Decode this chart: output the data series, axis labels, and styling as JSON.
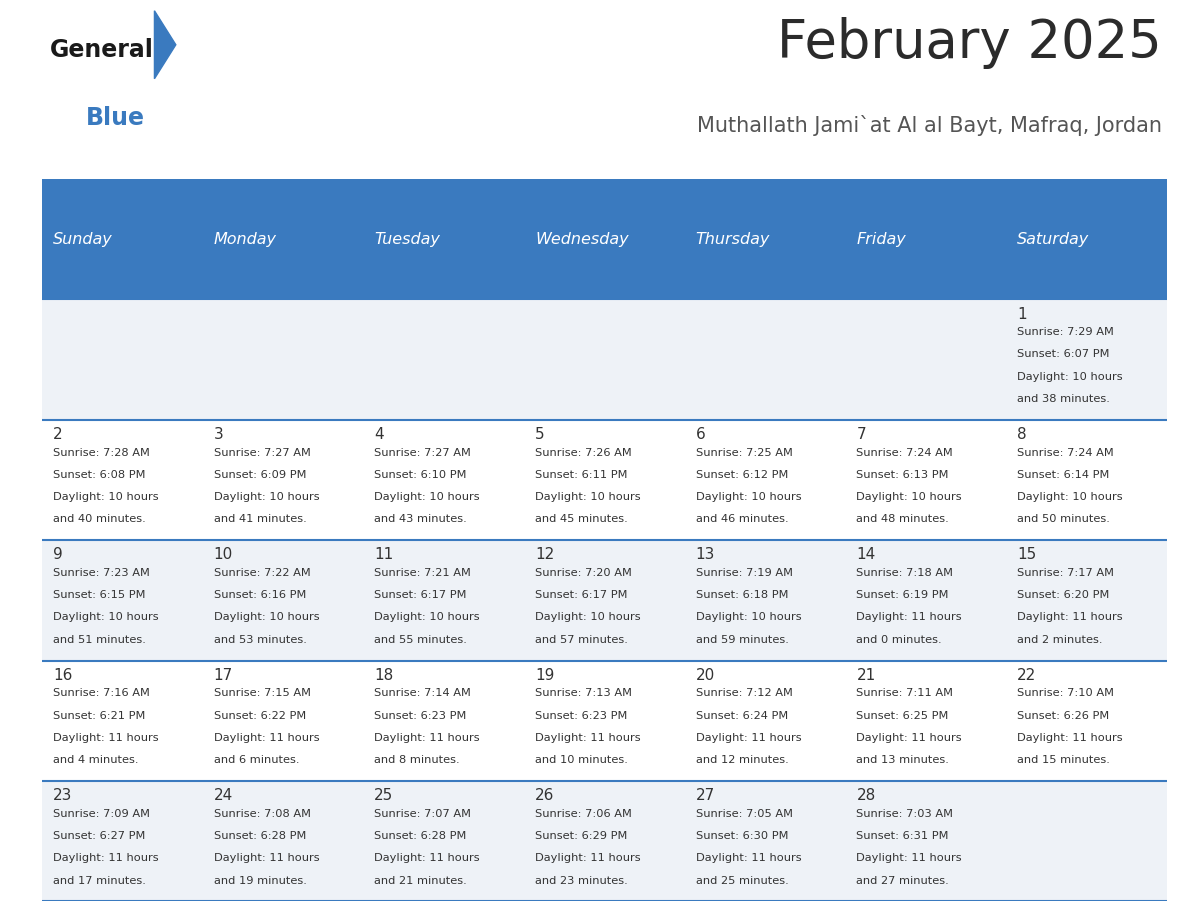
{
  "title": "February 2025",
  "subtitle": "Muthallath Jami`at Al al Bayt, Mafraq, Jordan",
  "header_bg": "#3a7abf",
  "header_text": "#ffffff",
  "row_bg_1": "#eef2f7",
  "row_bg_2": "#ffffff",
  "separator_color": "#3a7abf",
  "text_color": "#333333",
  "logo_general_color": "#1a1a1a",
  "logo_blue_color": "#3a7abf",
  "days_of_week": [
    "Sunday",
    "Monday",
    "Tuesday",
    "Wednesday",
    "Thursday",
    "Friday",
    "Saturday"
  ],
  "calendar_data": [
    [
      null,
      null,
      null,
      null,
      null,
      null,
      {
        "day": "1",
        "sunrise": "7:29 AM",
        "sunset": "6:07 PM",
        "daylight_line1": "Daylight: 10 hours",
        "daylight_line2": "and 38 minutes."
      }
    ],
    [
      {
        "day": "2",
        "sunrise": "7:28 AM",
        "sunset": "6:08 PM",
        "daylight_line1": "Daylight: 10 hours",
        "daylight_line2": "and 40 minutes."
      },
      {
        "day": "3",
        "sunrise": "7:27 AM",
        "sunset": "6:09 PM",
        "daylight_line1": "Daylight: 10 hours",
        "daylight_line2": "and 41 minutes."
      },
      {
        "day": "4",
        "sunrise": "7:27 AM",
        "sunset": "6:10 PM",
        "daylight_line1": "Daylight: 10 hours",
        "daylight_line2": "and 43 minutes."
      },
      {
        "day": "5",
        "sunrise": "7:26 AM",
        "sunset": "6:11 PM",
        "daylight_line1": "Daylight: 10 hours",
        "daylight_line2": "and 45 minutes."
      },
      {
        "day": "6",
        "sunrise": "7:25 AM",
        "sunset": "6:12 PM",
        "daylight_line1": "Daylight: 10 hours",
        "daylight_line2": "and 46 minutes."
      },
      {
        "day": "7",
        "sunrise": "7:24 AM",
        "sunset": "6:13 PM",
        "daylight_line1": "Daylight: 10 hours",
        "daylight_line2": "and 48 minutes."
      },
      {
        "day": "8",
        "sunrise": "7:24 AM",
        "sunset": "6:14 PM",
        "daylight_line1": "Daylight: 10 hours",
        "daylight_line2": "and 50 minutes."
      }
    ],
    [
      {
        "day": "9",
        "sunrise": "7:23 AM",
        "sunset": "6:15 PM",
        "daylight_line1": "Daylight: 10 hours",
        "daylight_line2": "and 51 minutes."
      },
      {
        "day": "10",
        "sunrise": "7:22 AM",
        "sunset": "6:16 PM",
        "daylight_line1": "Daylight: 10 hours",
        "daylight_line2": "and 53 minutes."
      },
      {
        "day": "11",
        "sunrise": "7:21 AM",
        "sunset": "6:17 PM",
        "daylight_line1": "Daylight: 10 hours",
        "daylight_line2": "and 55 minutes."
      },
      {
        "day": "12",
        "sunrise": "7:20 AM",
        "sunset": "6:17 PM",
        "daylight_line1": "Daylight: 10 hours",
        "daylight_line2": "and 57 minutes."
      },
      {
        "day": "13",
        "sunrise": "7:19 AM",
        "sunset": "6:18 PM",
        "daylight_line1": "Daylight: 10 hours",
        "daylight_line2": "and 59 minutes."
      },
      {
        "day": "14",
        "sunrise": "7:18 AM",
        "sunset": "6:19 PM",
        "daylight_line1": "Daylight: 11 hours",
        "daylight_line2": "and 0 minutes."
      },
      {
        "day": "15",
        "sunrise": "7:17 AM",
        "sunset": "6:20 PM",
        "daylight_line1": "Daylight: 11 hours",
        "daylight_line2": "and 2 minutes."
      }
    ],
    [
      {
        "day": "16",
        "sunrise": "7:16 AM",
        "sunset": "6:21 PM",
        "daylight_line1": "Daylight: 11 hours",
        "daylight_line2": "and 4 minutes."
      },
      {
        "day": "17",
        "sunrise": "7:15 AM",
        "sunset": "6:22 PM",
        "daylight_line1": "Daylight: 11 hours",
        "daylight_line2": "and 6 minutes."
      },
      {
        "day": "18",
        "sunrise": "7:14 AM",
        "sunset": "6:23 PM",
        "daylight_line1": "Daylight: 11 hours",
        "daylight_line2": "and 8 minutes."
      },
      {
        "day": "19",
        "sunrise": "7:13 AM",
        "sunset": "6:23 PM",
        "daylight_line1": "Daylight: 11 hours",
        "daylight_line2": "and 10 minutes."
      },
      {
        "day": "20",
        "sunrise": "7:12 AM",
        "sunset": "6:24 PM",
        "daylight_line1": "Daylight: 11 hours",
        "daylight_line2": "and 12 minutes."
      },
      {
        "day": "21",
        "sunrise": "7:11 AM",
        "sunset": "6:25 PM",
        "daylight_line1": "Daylight: 11 hours",
        "daylight_line2": "and 13 minutes."
      },
      {
        "day": "22",
        "sunrise": "7:10 AM",
        "sunset": "6:26 PM",
        "daylight_line1": "Daylight: 11 hours",
        "daylight_line2": "and 15 minutes."
      }
    ],
    [
      {
        "day": "23",
        "sunrise": "7:09 AM",
        "sunset": "6:27 PM",
        "daylight_line1": "Daylight: 11 hours",
        "daylight_line2": "and 17 minutes."
      },
      {
        "day": "24",
        "sunrise": "7:08 AM",
        "sunset": "6:28 PM",
        "daylight_line1": "Daylight: 11 hours",
        "daylight_line2": "and 19 minutes."
      },
      {
        "day": "25",
        "sunrise": "7:07 AM",
        "sunset": "6:28 PM",
        "daylight_line1": "Daylight: 11 hours",
        "daylight_line2": "and 21 minutes."
      },
      {
        "day": "26",
        "sunrise": "7:06 AM",
        "sunset": "6:29 PM",
        "daylight_line1": "Daylight: 11 hours",
        "daylight_line2": "and 23 minutes."
      },
      {
        "day": "27",
        "sunrise": "7:05 AM",
        "sunset": "6:30 PM",
        "daylight_line1": "Daylight: 11 hours",
        "daylight_line2": "and 25 minutes."
      },
      {
        "day": "28",
        "sunrise": "7:03 AM",
        "sunset": "6:31 PM",
        "daylight_line1": "Daylight: 11 hours",
        "daylight_line2": "and 27 minutes."
      },
      null
    ]
  ],
  "figsize": [
    11.88,
    9.18
  ],
  "dpi": 100
}
